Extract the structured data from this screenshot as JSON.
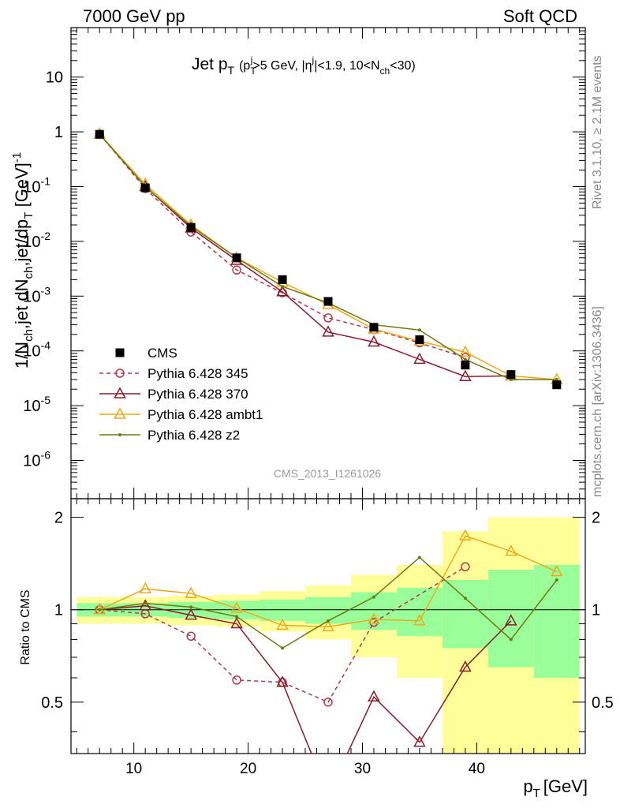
{
  "header": {
    "left": "7000 GeV pp",
    "right": "Soft QCD"
  },
  "side_notes": {
    "rivet": "Rivet 3.1.10, ≥ 2.1M events",
    "mcplots": "mcplots.cern.ch [arXiv:1306.3436]"
  },
  "watermark": "CMS_2013_I1261026",
  "chart_data": {
    "type": "scatter",
    "title": "Jet p_T (p_T^j>5 GeV, |η^j|<1.9, 10<N_ch<30)",
    "title_main": "Jet p",
    "title_main_sub": "T",
    "title_cut": "(p",
    "title_cut_sub": "T",
    "title_cut_sup": "j",
    "title_cut_rest1": ">5 GeV, |η",
    "title_cut_sup2": "j",
    "title_cut_rest2": "|<1.9, 10<N",
    "title_cut_sub2": "ch",
    "title_cut_rest3": "<30)",
    "xlabel": "p_T [GeV]",
    "xlabel_main": "p",
    "xlabel_sub": "T",
    "xlabel_unit": "[GeV]",
    "ylabel": "1/N_ch,jet dN_ch,jet/dp_T [GeV]^-1",
    "ylabel_p1": "1/N",
    "ylabel_s1": "ch",
    "ylabel_p2": ",jet dN",
    "ylabel_s2": "ch",
    "ylabel_p3": ",jet/dp",
    "ylabel_s3": "T",
    "ylabel_p4": " [GeV]",
    "ylabel_sup": "-1",
    "ratio_ylabel": "Ratio to CMS",
    "xlim": [
      4.5,
      49.5
    ],
    "ylim": [
      2e-07,
      80
    ],
    "yscale": "log",
    "ratio_ylim": [
      0.34,
      2.3
    ],
    "ratio_yscale": "log",
    "legend_position": "middle-left",
    "x_ticks": [
      "10",
      "20",
      "30",
      "40"
    ],
    "y_ticks": [
      {
        "base": "10",
        "exp": "-6"
      },
      {
        "base": "10",
        "exp": "-5"
      },
      {
        "base": "10",
        "exp": "-4"
      },
      {
        "base": "10",
        "exp": "-3"
      },
      {
        "base": "10",
        "exp": "-2"
      },
      {
        "base": "10",
        "exp": "-1"
      },
      {
        "base": "1",
        "exp": ""
      },
      {
        "base": "10",
        "exp": ""
      }
    ],
    "ratio_ticks": [
      "0.5",
      "1",
      "2"
    ],
    "x": [
      7,
      11,
      15,
      19,
      23,
      27,
      31,
      35,
      39,
      43,
      47
    ],
    "bin_edges": [
      5,
      9,
      13,
      17,
      21,
      25,
      29,
      33,
      37,
      41,
      45,
      49
    ],
    "data": {
      "name": "CMS",
      "color": "#000000",
      "values": [
        0.9,
        0.095,
        0.018,
        0.005,
        0.002,
        0.0008,
        0.00027,
        0.00016,
        5.5e-05,
        3.7e-05,
        2.4e-05
      ],
      "stat_band_frac": [
        0.05,
        0.05,
        0.06,
        0.07,
        0.08,
        0.1,
        0.14,
        0.18,
        0.25,
        0.35,
        0.4
      ],
      "total_band_frac": [
        0.1,
        0.1,
        0.11,
        0.12,
        0.15,
        0.2,
        0.3,
        0.4,
        0.8,
        1.0,
        1.0
      ]
    },
    "series": [
      {
        "name": "Pythia 6.428 345",
        "color": "#b03a48",
        "marker": "circle",
        "dash": "5,4",
        "values": [
          0.91,
          0.092,
          0.0148,
          0.003,
          0.00115,
          0.0004,
          0.000245,
          0.00014,
          7.6e-05
        ],
        "ratio": [
          1.0,
          0.97,
          0.82,
          0.59,
          0.58,
          0.5,
          0.91,
          null,
          1.38
        ]
      },
      {
        "name": "Pythia 6.428 370",
        "color": "#8b1a2a",
        "marker": "triangle",
        "dash": "",
        "values": [
          0.91,
          0.1,
          0.0175,
          0.0045,
          0.0012,
          0.00022,
          0.000145,
          7e-05,
          3.4e-05,
          3.5e-05
        ],
        "ratio": [
          1.0,
          1.03,
          0.96,
          0.9,
          0.58,
          0.25,
          0.52,
          0.37,
          0.65,
          0.92
        ]
      },
      {
        "name": "Pythia 6.428 ambt1",
        "color": "#f0a818",
        "marker": "triangle",
        "dash": "",
        "values": [
          0.91,
          0.11,
          0.02,
          0.005,
          0.0018,
          0.0007,
          0.00025,
          0.00015,
          9.5e-05,
          3.5e-05,
          3e-05
        ],
        "ratio": [
          1.0,
          1.17,
          1.13,
          1.01,
          0.89,
          0.88,
          0.93,
          0.92,
          1.74,
          1.55,
          1.33
        ]
      },
      {
        "name": "Pythia 6.428 z2",
        "color": "#6b7a10",
        "marker": "dot",
        "dash": "",
        "values": [
          0.91,
          0.1,
          0.019,
          0.005,
          0.0015,
          0.00075,
          0.0003,
          0.00024,
          7e-05,
          3e-05,
          3e-05
        ],
        "ratio": [
          1.0,
          1.05,
          1.02,
          0.95,
          0.75,
          0.92,
          1.1,
          1.48,
          1.09,
          0.8,
          1.25
        ]
      }
    ]
  }
}
